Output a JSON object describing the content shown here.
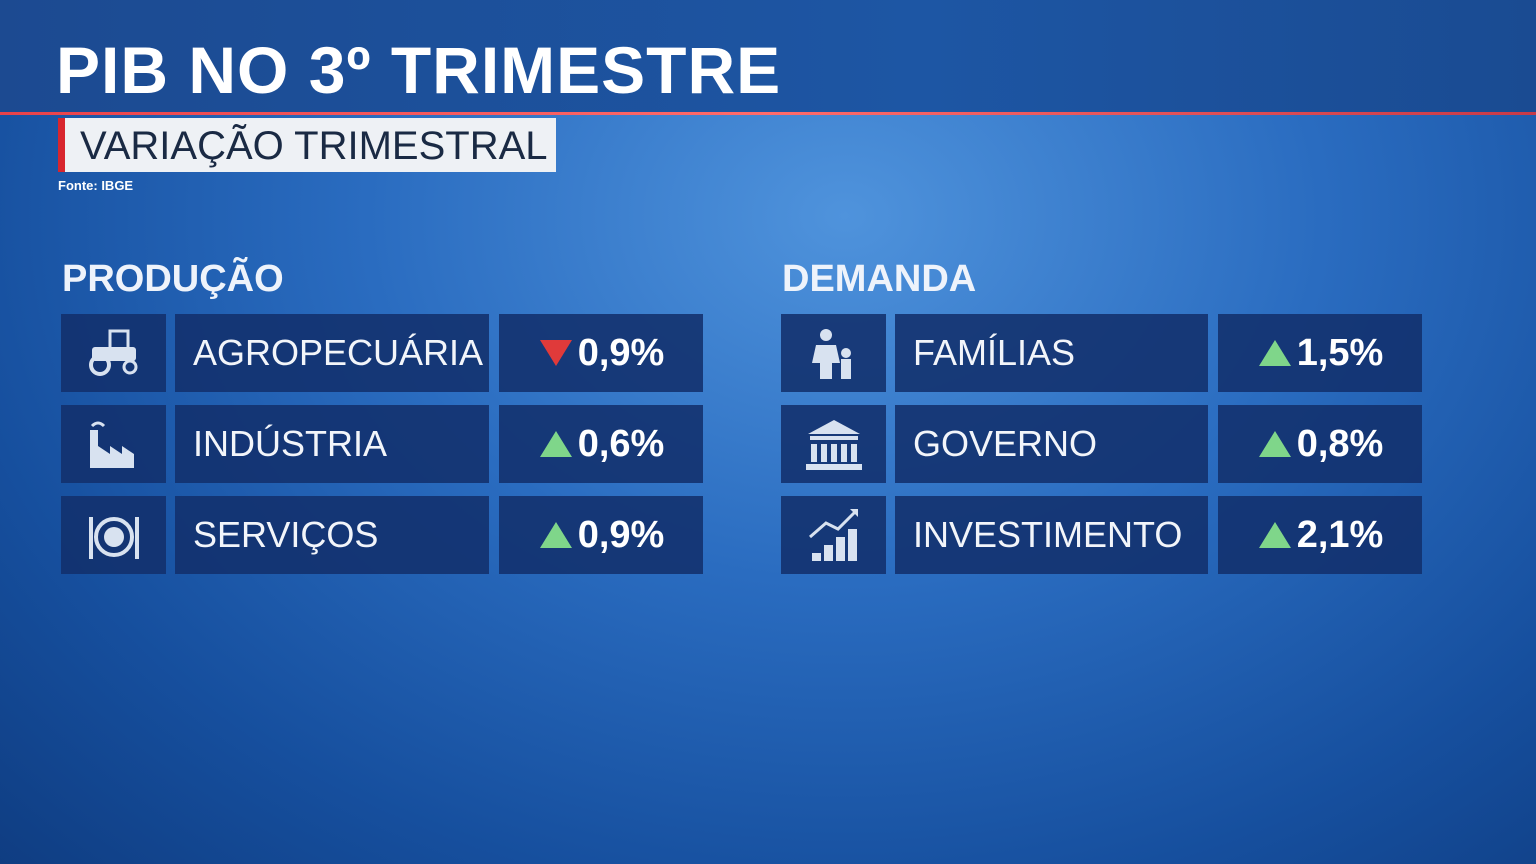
{
  "header": {
    "title": "PIB NO 3º TRIMESTRE",
    "subtitle": "VARIAÇÃO TRIMESTRAL",
    "source": "Fonte: IBGE"
  },
  "sections": [
    {
      "title": "PRODUÇÃO",
      "rows": [
        {
          "label": "AGROPECUÁRIA",
          "value": "0,9%",
          "direction": "down"
        },
        {
          "label": "INDÚSTRIA",
          "value": "0,6%",
          "direction": "up"
        },
        {
          "label": "SERVIÇOS",
          "value": "0,9%",
          "direction": "up"
        }
      ]
    },
    {
      "title": "DEMANDA",
      "rows": [
        {
          "label": "FAMÍLIAS",
          "value": "1,5%",
          "direction": "up"
        },
        {
          "label": "GOVERNO",
          "value": "0,8%",
          "direction": "up"
        },
        {
          "label": "INVESTIMENTO",
          "value": "2,1%",
          "direction": "up"
        }
      ]
    }
  ]
}
